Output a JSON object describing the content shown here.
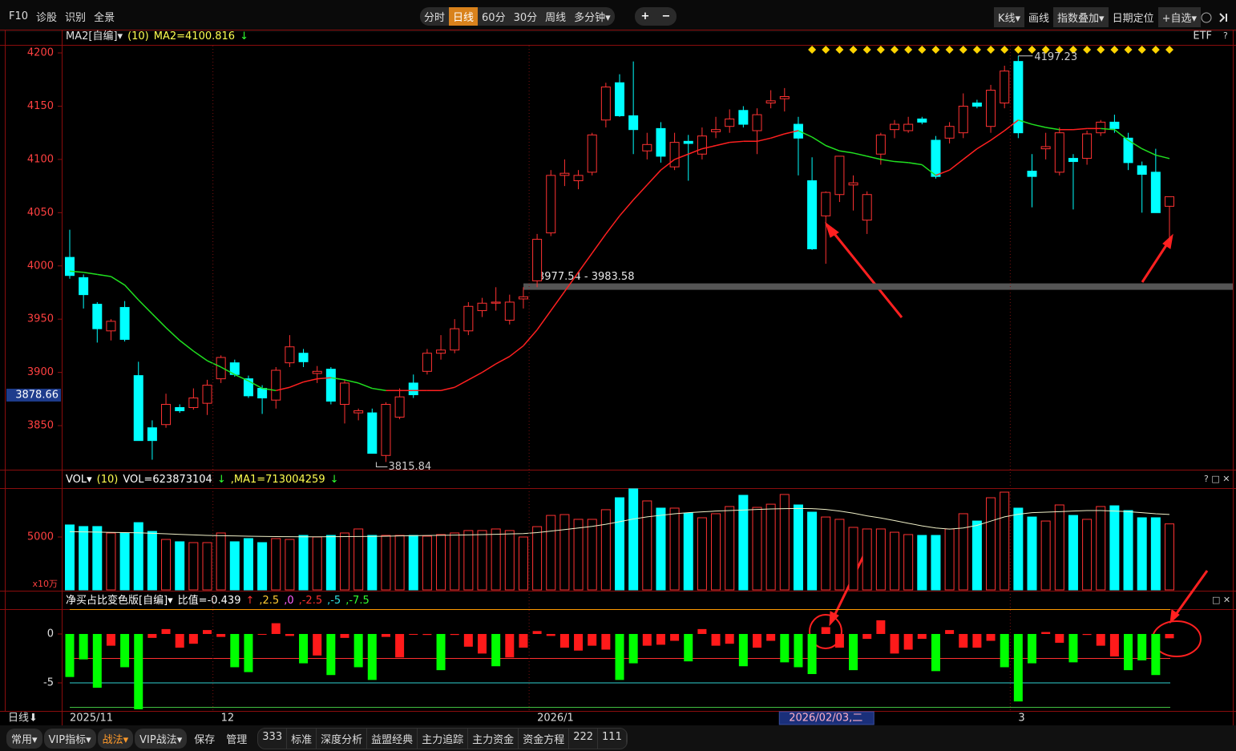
{
  "toolbar": {
    "left": [
      "F10",
      "诊股",
      "识别",
      "全景"
    ],
    "periods": [
      "分时",
      "日线",
      "60分",
      "30分",
      "周线",
      "多分钟▾"
    ],
    "zoom": [
      "+",
      "−"
    ],
    "right": [
      "K线▾",
      "画线",
      "指数叠加▾",
      "日期定位",
      "+自选▾"
    ]
  },
  "chart_data": [
    {
      "type": "candlestick",
      "header": [
        {
          "text": "MA2[自编]▾",
          "color": "#e0e0e0"
        },
        {
          "text": "(10)",
          "color": "#ffff50"
        },
        {
          "text": "MA2=4100.816",
          "color": "#ffff50"
        },
        {
          "text": "↓",
          "color": "#30ff30"
        }
      ],
      "right_label": "ETF",
      "up_color": "#ff3232",
      "down_color": "#00ffff",
      "ma_up_color": "#ff2020",
      "ma_down_color": "#20e020",
      "ylim": [
        3809.4,
        4206.8
      ],
      "yticks": [
        4200,
        4150,
        4100,
        4050,
        4000,
        3950,
        3900,
        3850
      ],
      "cursor_price": 3878.66,
      "band_label": "3977.54 - 3983.58",
      "band": [
        3977.54,
        3983.58
      ],
      "ohlc": [
        [
          4008,
          4034,
          3988,
          3991
        ],
        [
          3989,
          3992,
          3960,
          3973
        ],
        [
          3964,
          3966,
          3928,
          3941
        ],
        [
          3939,
          3950,
          3930,
          3948
        ],
        [
          3961,
          3967,
          3929,
          3931
        ],
        [
          3897,
          3910,
          3836,
          3836
        ],
        [
          3848,
          3855,
          3818,
          3836
        ],
        [
          3851,
          3880,
          3848,
          3870
        ],
        [
          3867,
          3870,
          3862,
          3864
        ],
        [
          3867,
          3885,
          3865,
          3876
        ],
        [
          3871,
          3893,
          3860,
          3888
        ],
        [
          3894,
          3916,
          3890,
          3914
        ],
        [
          3909,
          3912,
          3896,
          3898
        ],
        [
          3894,
          3897,
          3876,
          3878
        ],
        [
          3885,
          3888,
          3861,
          3876
        ],
        [
          3874,
          3905,
          3866,
          3902
        ],
        [
          3909,
          3935,
          3905,
          3924
        ],
        [
          3918,
          3922,
          3905,
          3910
        ],
        [
          3899,
          3906,
          3890,
          3901
        ],
        [
          3903,
          3905,
          3870,
          3873
        ],
        [
          3870,
          3893,
          3852,
          3890
        ],
        [
          3862,
          3866,
          3855,
          3864
        ],
        [
          3862,
          3866,
          3824,
          3824
        ],
        [
          3822,
          3872,
          3815.84,
          3870
        ],
        [
          3858,
          3885,
          3856,
          3877
        ],
        [
          3890,
          3898,
          3876,
          3879
        ],
        [
          3901,
          3922,
          3898,
          3918
        ],
        [
          3918,
          3935,
          3912,
          3921
        ],
        [
          3921,
          3950,
          3918,
          3941
        ],
        [
          3939,
          3966,
          3935,
          3962
        ],
        [
          3958,
          3970,
          3952,
          3965
        ],
        [
          3965,
          3980,
          3958,
          3966
        ],
        [
          3949,
          3973,
          3945,
          3966
        ],
        [
          3969,
          3980,
          3960,
          3971
        ],
        [
          3986,
          4030,
          3980,
          4025
        ],
        [
          4031,
          4090,
          4028,
          4085
        ],
        [
          4085,
          4100,
          4075,
          4087
        ],
        [
          4080,
          4090,
          4072,
          4085
        ],
        [
          4088,
          4125,
          4085,
          4123
        ],
        [
          4137,
          4172,
          4130,
          4168
        ],
        [
          4172,
          4180,
          4140,
          4141
        ],
        [
          4141,
          4192,
          4105,
          4128
        ],
        [
          4108,
          4125,
          4100,
          4114
        ],
        [
          4129,
          4135,
          4097,
          4103
        ],
        [
          4093,
          4125,
          4090,
          4116
        ],
        [
          4117,
          4123,
          4080,
          4115
        ],
        [
          4105,
          4130,
          4100,
          4122
        ],
        [
          4126,
          4140,
          4120,
          4128
        ],
        [
          4131,
          4147,
          4125,
          4138
        ],
        [
          4146,
          4150,
          4130,
          4133
        ],
        [
          4127,
          4148,
          4105,
          4142
        ],
        [
          4153,
          4165,
          4148,
          4155
        ],
        [
          4157,
          4167,
          4145,
          4159
        ],
        [
          4133,
          4140,
          4085,
          4120
        ],
        [
          4080,
          4102,
          4015,
          4016
        ],
        [
          4047,
          4070,
          4002,
          4069
        ],
        [
          4067,
          4103,
          4060,
          4103
        ],
        [
          4076,
          4085,
          4052,
          4078
        ],
        [
          4043,
          4070,
          4030,
          4067
        ],
        [
          4105,
          4125,
          4095,
          4123
        ],
        [
          4128,
          4137,
          4120,
          4133
        ],
        [
          4127,
          4140,
          4125,
          4133
        ],
        [
          4138,
          4140,
          4133,
          4135
        ],
        [
          4118,
          4122,
          4082,
          4084
        ],
        [
          4120,
          4135,
          4115,
          4131
        ],
        [
          4125,
          4162,
          4120,
          4150
        ],
        [
          4153,
          4156,
          4148,
          4150
        ],
        [
          4131,
          4170,
          4125,
          4165
        ],
        [
          4153,
          4188,
          4148,
          4183
        ],
        [
          4192,
          4197.23,
          4120,
          4125
        ],
        [
          4089,
          4105,
          4055,
          4084
        ],
        [
          4110,
          4125,
          4100,
          4112
        ],
        [
          4088,
          4130,
          4085,
          4125
        ],
        [
          4101,
          4105,
          4053,
          4098
        ],
        [
          4101,
          4127,
          4095,
          4124
        ],
        [
          4125,
          4137,
          4122,
          4135
        ],
        [
          4135,
          4142,
          4125,
          4129
        ],
        [
          4120,
          4125,
          4090,
          4097
        ],
        [
          4094,
          4098,
          4050,
          4086
        ],
        [
          4088,
          4110,
          4050,
          4050
        ],
        [
          4056,
          4065,
          4023,
          4065
        ]
      ],
      "ma": [
        3995,
        3994,
        3992,
        3990,
        3982,
        3968,
        3955,
        3942,
        3930,
        3920,
        3911,
        3905,
        3898,
        3892,
        3885,
        3883,
        3886,
        3891,
        3894,
        3895,
        3893,
        3890,
        3885,
        3883,
        3883,
        3883,
        3883,
        3883,
        3886,
        3893,
        3900,
        3908,
        3915,
        3925,
        3940,
        3958,
        3976,
        3994,
        4012,
        4030,
        4047,
        4062,
        4076,
        4090,
        4100,
        4105,
        4110,
        4113,
        4116,
        4117,
        4117,
        4120,
        4124,
        4127,
        4121,
        4113,
        4108,
        4106,
        4103,
        4100,
        4098,
        4097,
        4095,
        4085,
        4090,
        4100,
        4110,
        4118,
        4127,
        4137,
        4133,
        4130,
        4128,
        4128,
        4129,
        4129,
        4128,
        4118,
        4110,
        4104,
        4100.816
      ]
    },
    {
      "type": "bar",
      "header": [
        {
          "text": "VOL▾",
          "color": "#ffffff"
        },
        {
          "text": "(10)",
          "color": "#ffff50"
        },
        {
          "text": "VOL=623873104",
          "color": "#ffffff"
        },
        {
          "text": "↓",
          "color": "#30ff30"
        },
        {
          "text": ",MA1=713004259",
          "color": "#ffff50"
        },
        {
          "text": "↓",
          "color": "#30ff30"
        }
      ],
      "unit_label": "x10万",
      "ylim": [
        0,
        9545
      ],
      "yticks": [
        5000
      ],
      "values": [
        6140,
        5990,
        5990,
        5380,
        5380,
        6360,
        5530,
        4770,
        4550,
        4470,
        4470,
        5380,
        4550,
        4850,
        4470,
        4850,
        4770,
        5150,
        5000,
        5150,
        5380,
        5760,
        5150,
        5150,
        5150,
        5150,
        5080,
        5230,
        5380,
        5610,
        5610,
        5760,
        5610,
        5000,
        5980,
        7040,
        7120,
        6670,
        6670,
        7580,
        8710,
        9550,
        8410,
        7730,
        7730,
        7270,
        6820,
        7200,
        7880,
        8940,
        7800,
        8100,
        9020,
        8030,
        7350,
        6890,
        6670,
        5910,
        5760,
        5760,
        5450,
        5230,
        5150,
        5150,
        5760,
        7200,
        6510,
        8710,
        9240,
        7730,
        6890,
        6510,
        8030,
        7040,
        6670,
        7880,
        7950,
        7500,
        6820,
        6820,
        6238.73104
      ],
      "ma": [
        5500,
        5480,
        5460,
        5440,
        5420,
        5400,
        5350,
        5300,
        5250,
        5200,
        5150,
        5120,
        5100,
        5080,
        5060,
        5040,
        5030,
        5020,
        5020,
        5030,
        5040,
        5050,
        5060,
        5080,
        5100,
        5120,
        5140,
        5160,
        5180,
        5200,
        5230,
        5260,
        5290,
        5320,
        5420,
        5560,
        5700,
        5850,
        6000,
        6200,
        6450,
        6700,
        6900,
        7050,
        7200,
        7300,
        7380,
        7450,
        7500,
        7550,
        7600,
        7650,
        7680,
        7700,
        7680,
        7600,
        7450,
        7250,
        7000,
        6800,
        6550,
        6300,
        6050,
        5850,
        5750,
        5850,
        6100,
        6500,
        6900,
        7150,
        7300,
        7350,
        7400,
        7450,
        7500,
        7500,
        7450,
        7400,
        7300,
        7200,
        7130.04259
      ],
      "ma_color": "#f0f0c8"
    },
    {
      "type": "bar",
      "header": [
        {
          "text": "净买占比变色版[自编]▾",
          "color": "#ffffff"
        },
        {
          "text": "比值=-0.439",
          "color": "#ffffff"
        },
        {
          "text": "↑",
          "color": "#ff3030"
        },
        {
          "text": ",2.5",
          "color": "#ffcc33"
        },
        {
          "text": ",0",
          "color": "#ff60ff"
        },
        {
          "text": ",-2.5",
          "color": "#ff3030"
        },
        {
          "text": ",-5",
          "color": "#30e0e0"
        },
        {
          "text": ",-7.5",
          "color": "#30ff30"
        }
      ],
      "ylim": [
        -7.87,
        2.54
      ],
      "yticks": [
        0,
        -5
      ],
      "levels": [
        {
          "value": 2.5,
          "color": "#ff9900"
        },
        {
          "value": -2.5,
          "color": "#ff3030"
        },
        {
          "value": -5,
          "color": "#30d0d0"
        },
        {
          "value": -7.5,
          "color": "#40c040"
        }
      ],
      "pos_color": "#ff1a1a",
      "neg_color": "#00ff00",
      "values": [
        -4.4,
        -2.6,
        -5.5,
        -1.2,
        -3.4,
        -7.7,
        -0.4,
        0.5,
        -1.4,
        -1.0,
        0.4,
        -0.3,
        -3.4,
        -3.9,
        0,
        1.1,
        -0.2,
        -3.0,
        -2.2,
        -4.2,
        -0.4,
        -3.4,
        -4.7,
        -0.3,
        -2.4,
        0,
        -0.1,
        -3.7,
        -0.1,
        -1.3,
        -2.0,
        -3.3,
        -2.4,
        -1.4,
        0.3,
        -0.2,
        -1.4,
        -1.7,
        -1.2,
        -1.6,
        -4.7,
        -3.0,
        -1.2,
        -1.1,
        -0.7,
        -2.8,
        0.5,
        -1.2,
        -1.0,
        -3.3,
        -1.4,
        -0.7,
        -2.9,
        -3.4,
        -4.1,
        0.7,
        -1.4,
        -3.7,
        -0.5,
        1.4,
        -2.0,
        -1.6,
        -0.5,
        -3.8,
        0.4,
        -1.4,
        -1.4,
        -0.7,
        -3.4,
        -6.9,
        -3.0,
        0.2,
        -0.9,
        -2.9,
        -0.1,
        -1.2,
        -2.3,
        -3.7,
        -2.7,
        -4.2,
        -0.439
      ]
    }
  ],
  "x_axis": {
    "period": "日线⬇",
    "labels": [
      {
        "value": 0,
        "label": "2025/11"
      },
      {
        "value": 11,
        "label": "12"
      },
      {
        "value": 34,
        "label": "2026/1"
      },
      {
        "value": 69,
        "label": "3"
      }
    ],
    "cursor": {
      "value": 55,
      "label": "2026/02/03,二"
    }
  },
  "bottom_toolbar": {
    "menus": [
      "常用▾",
      "VIP指标▾",
      "战法▾",
      "VIP战法▾"
    ],
    "buttons": [
      "保存",
      "管理"
    ],
    "tabs": [
      "333",
      "标准",
      "深度分析",
      "益盟经典",
      "主力追踪",
      "主力资金",
      "资金方程",
      "222",
      "111"
    ]
  }
}
